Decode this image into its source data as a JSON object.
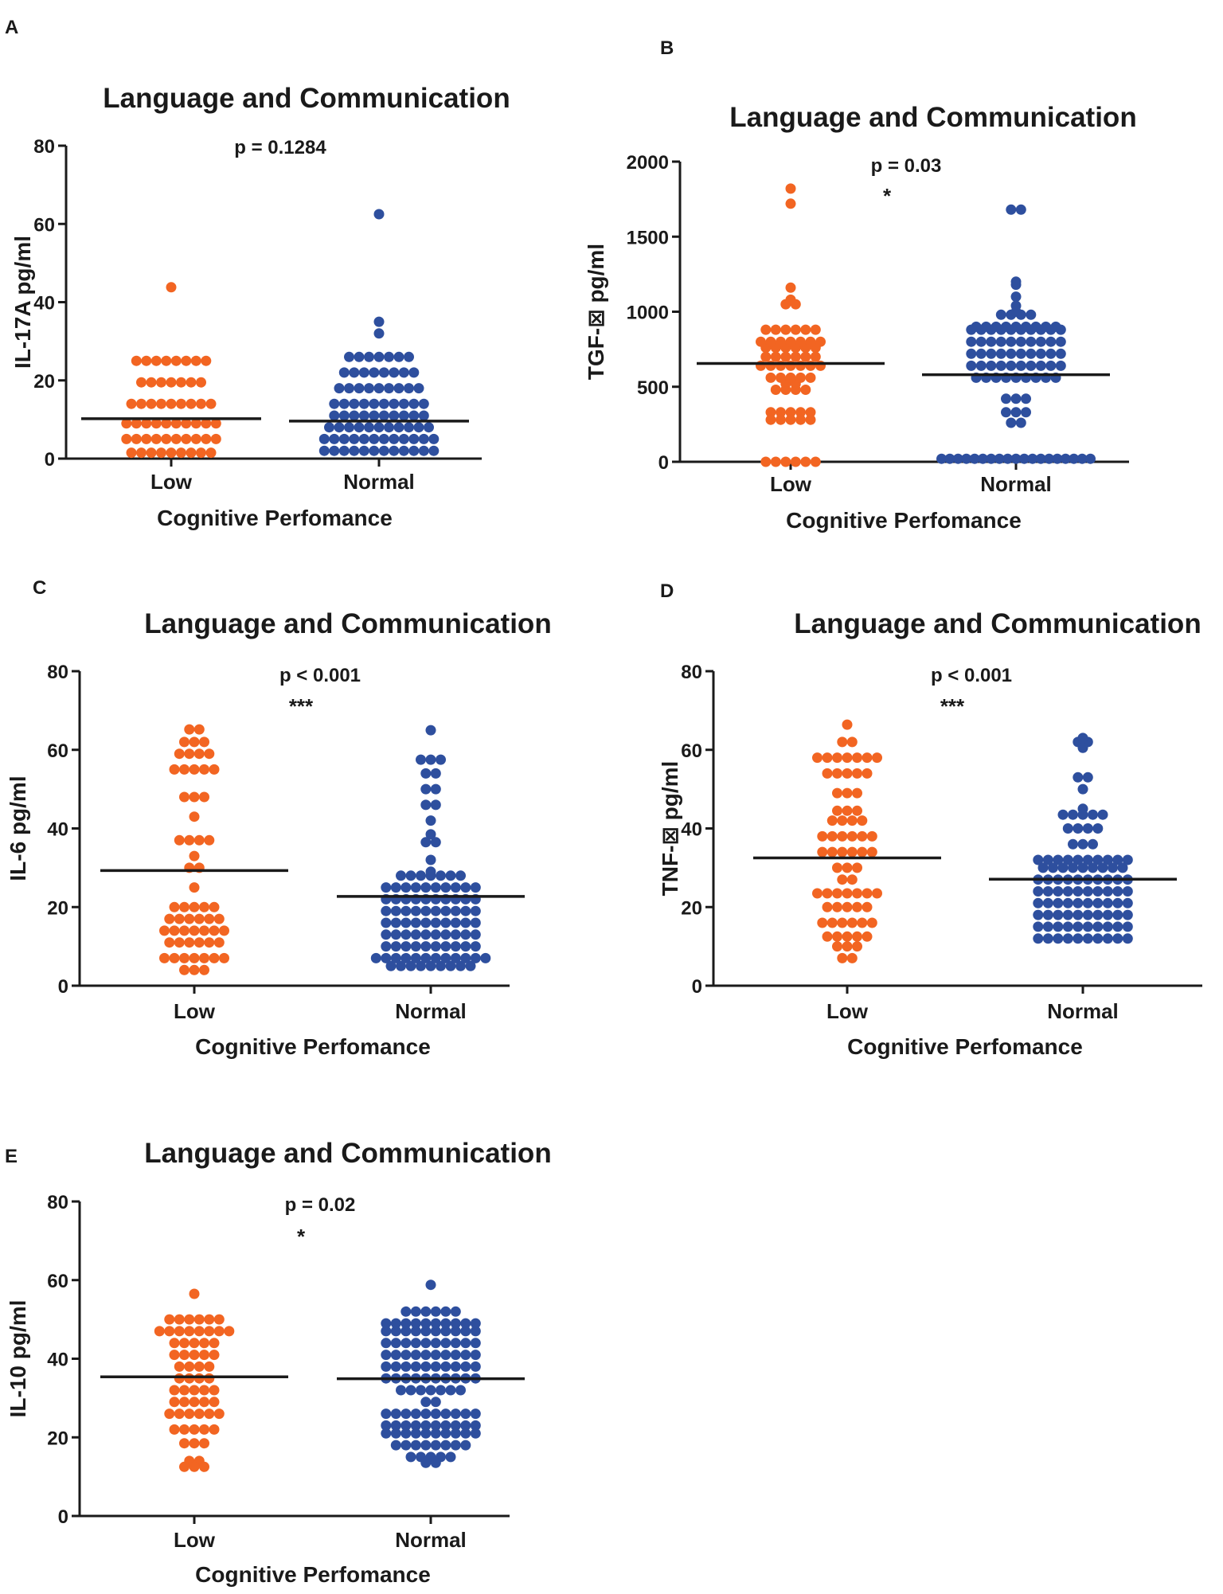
{
  "colors": {
    "low": "#f26522",
    "normal": "#2e4f9e",
    "axis": "#1a1a1a"
  },
  "chart_data": [
    {
      "panel": "A",
      "type": "scatter",
      "title": "Language and Communication",
      "ylabel": "IL-17A pg/ml",
      "xlabel": "Cognitive Perfomance",
      "ylim": [
        0,
        80
      ],
      "yticks": [
        0,
        20,
        40,
        60,
        80
      ],
      "categories": [
        "Low",
        "Normal"
      ],
      "p_value": "p  = 0.1284",
      "significance": "",
      "series": [
        {
          "name": "Low",
          "mean": 10.2,
          "values": [
            43.8,
            25,
            25,
            25,
            25,
            25,
            25,
            25,
            25,
            19.5,
            19.5,
            19.5,
            19.5,
            19.5,
            19.5,
            19.5,
            14,
            14,
            14,
            14,
            14,
            14,
            14,
            14,
            14,
            9,
            9,
            9,
            9,
            9,
            9,
            9,
            9,
            9,
            9,
            5,
            5,
            5,
            5,
            5,
            5,
            5,
            5,
            5,
            5,
            1.5,
            1.5,
            1.5,
            1.5,
            1.5,
            1.5,
            1.5,
            1.5,
            1.5
          ]
        },
        {
          "name": "Normal",
          "mean": 9.6,
          "values": [
            62.5,
            35,
            32,
            26,
            26,
            26,
            26,
            26,
            26,
            26,
            22,
            22,
            22,
            22,
            22,
            22,
            22,
            22,
            18,
            18,
            18,
            18,
            18,
            18,
            18,
            18,
            18,
            14,
            14,
            14,
            14,
            14,
            14,
            14,
            14,
            14,
            14,
            11,
            11,
            11,
            11,
            11,
            11,
            11,
            11,
            11,
            11,
            8,
            8,
            8,
            8,
            8,
            8,
            8,
            8,
            8,
            8,
            8,
            5,
            5,
            5,
            5,
            5,
            5,
            5,
            5,
            5,
            5,
            5,
            5,
            2,
            2,
            2,
            2,
            2,
            2,
            2,
            2,
            2,
            2,
            2,
            2
          ]
        }
      ]
    },
    {
      "panel": "B",
      "type": "scatter",
      "title": "Language and Communication",
      "ylabel": "TGF-⊠ pg/ml",
      "xlabel": "Cognitive Perfomance",
      "ylim": [
        0,
        2000
      ],
      "yticks": [
        0,
        500,
        1000,
        1500,
        2000
      ],
      "categories": [
        "Low",
        "Normal"
      ],
      "p_value": "p  = 0.03",
      "significance": "*",
      "series": [
        {
          "name": "Low",
          "mean": 655,
          "values": [
            1820,
            1720,
            1160,
            1080,
            1050,
            1050,
            880,
            880,
            880,
            880,
            880,
            880,
            800,
            800,
            800,
            800,
            800,
            800,
            800,
            760,
            760,
            760,
            760,
            760,
            760,
            700,
            700,
            700,
            700,
            700,
            700,
            640,
            640,
            640,
            640,
            640,
            640,
            640,
            560,
            560,
            560,
            560,
            560,
            520,
            520,
            480,
            480,
            480,
            480,
            330,
            330,
            330,
            330,
            330,
            280,
            280,
            280,
            280,
            280,
            0,
            0,
            0,
            0,
            0,
            0
          ]
        },
        {
          "name": "Normal",
          "mean": 580,
          "values": [
            1680,
            1680,
            1200,
            1180,
            1100,
            1040,
            1000,
            980,
            980,
            980,
            980,
            900,
            900,
            900,
            900,
            900,
            900,
            900,
            900,
            900,
            880,
            880,
            880,
            880,
            880,
            880,
            880,
            880,
            880,
            880,
            800,
            800,
            800,
            800,
            800,
            800,
            800,
            800,
            800,
            800,
            720,
            720,
            720,
            720,
            720,
            720,
            720,
            720,
            720,
            720,
            640,
            640,
            640,
            640,
            640,
            640,
            640,
            640,
            640,
            640,
            560,
            560,
            560,
            560,
            560,
            560,
            560,
            560,
            560,
            420,
            420,
            420,
            330,
            330,
            330,
            260,
            260,
            20,
            20,
            20,
            20,
            20,
            20,
            20,
            20,
            20,
            20,
            20,
            20,
            20,
            20,
            20,
            20,
            20,
            20,
            20
          ]
        }
      ]
    },
    {
      "panel": "C",
      "type": "scatter",
      "title": "Language and Communication",
      "ylabel": "IL-6 pg/ml",
      "xlabel": "Cognitive Perfomance",
      "ylim": [
        0,
        80
      ],
      "yticks": [
        0,
        20,
        40,
        60,
        80
      ],
      "categories": [
        "Low",
        "Normal"
      ],
      "p_value": "p < 0.001",
      "significance": "***",
      "series": [
        {
          "name": "Low",
          "mean": 29.3,
          "values": [
            65.2,
            65.2,
            62,
            62,
            62,
            59,
            59,
            59,
            59,
            55,
            55,
            55,
            55,
            55,
            48,
            48,
            48,
            43,
            37,
            37,
            37,
            37,
            33,
            30,
            30,
            25,
            20,
            20,
            20,
            20,
            20,
            17,
            17,
            17,
            17,
            17,
            17,
            14,
            14,
            14,
            14,
            14,
            14,
            14,
            11,
            11,
            11,
            11,
            11,
            11,
            7,
            7,
            7,
            7,
            7,
            7,
            7,
            4,
            4,
            4
          ]
        },
        {
          "name": "Normal",
          "mean": 22.7,
          "values": [
            65,
            57.5,
            57.5,
            57.5,
            54,
            54,
            50,
            50,
            46,
            46,
            42,
            38.5,
            36.5,
            36.5,
            32,
            29,
            28,
            28,
            28,
            28,
            28,
            28,
            28,
            25,
            25,
            25,
            25,
            25,
            25,
            25,
            25,
            25,
            25,
            22,
            22,
            22,
            22,
            22,
            22,
            22,
            22,
            22,
            22,
            19,
            19,
            19,
            19,
            19,
            19,
            19,
            19,
            19,
            19,
            16,
            16,
            16,
            16,
            16,
            16,
            16,
            16,
            16,
            16,
            13,
            13,
            13,
            13,
            13,
            13,
            13,
            13,
            13,
            13,
            10,
            10,
            10,
            10,
            10,
            10,
            10,
            10,
            10,
            10,
            7,
            7,
            7,
            7,
            7,
            7,
            7,
            7,
            7,
            7,
            7,
            7,
            5,
            5,
            5,
            5,
            5,
            5,
            5,
            5,
            5
          ]
        }
      ]
    },
    {
      "panel": "D",
      "type": "scatter",
      "title": "Language and Communication",
      "ylabel": "TNF-⊠ pg/ml",
      "xlabel": "Cognitive Perfomance",
      "ylim": [
        0,
        80
      ],
      "yticks": [
        0,
        20,
        40,
        60,
        80
      ],
      "categories": [
        "Low",
        "Normal"
      ],
      "p_value": "p < 0.001",
      "significance": "***",
      "series": [
        {
          "name": "Low",
          "mean": 32.5,
          "values": [
            66.4,
            62,
            62,
            58,
            58,
            58,
            58,
            58,
            58,
            58,
            54,
            54,
            54,
            54,
            54,
            49,
            49,
            49,
            44.5,
            44.5,
            44.5,
            42,
            42,
            42,
            42,
            38,
            38,
            38,
            38,
            38,
            38,
            34,
            34,
            34,
            34,
            34,
            34,
            30,
            30,
            30,
            27,
            27,
            23.5,
            23.5,
            23.5,
            23.5,
            23.5,
            23.5,
            23.5,
            20,
            20,
            20,
            20,
            20,
            16,
            16,
            16,
            16,
            16,
            16,
            12.5,
            12.5,
            12.5,
            12.5,
            12.5,
            10,
            10,
            10,
            7,
            7
          ]
        },
        {
          "name": "Normal",
          "mean": 27.1,
          "values": [
            63,
            62,
            62,
            61.5,
            61,
            60.5,
            53,
            53,
            50,
            45,
            43.5,
            43.5,
            43.5,
            43.5,
            43.5,
            40,
            40,
            40,
            40,
            36,
            36,
            36,
            32,
            32,
            32,
            32,
            32,
            32,
            32,
            32,
            32,
            32,
            30,
            30,
            30,
            30,
            30,
            30,
            30,
            30,
            30,
            27,
            27,
            27,
            27,
            27,
            27,
            27,
            27,
            27,
            27,
            24,
            24,
            24,
            24,
            24,
            24,
            24,
            24,
            24,
            24,
            21,
            21,
            21,
            21,
            21,
            21,
            21,
            21,
            21,
            21,
            18,
            18,
            18,
            18,
            18,
            18,
            18,
            18,
            18,
            18,
            15,
            15,
            15,
            15,
            15,
            15,
            15,
            15,
            15,
            15,
            12,
            12,
            12,
            12,
            12,
            12,
            12,
            12,
            12,
            12
          ]
        }
      ]
    },
    {
      "panel": "E",
      "type": "scatter",
      "title": "Language and Communication",
      "ylabel": "IL-10 pg/ml",
      "xlabel": "Cognitive Perfomance",
      "ylim": [
        0,
        80
      ],
      "yticks": [
        0,
        20,
        40,
        60,
        80
      ],
      "categories": [
        "Low",
        "Normal"
      ],
      "p_value": "p = 0.02",
      "significance": "*",
      "series": [
        {
          "name": "Low",
          "mean": 35.4,
          "values": [
            56.5,
            50,
            50,
            50,
            50,
            50,
            50,
            47,
            47,
            47,
            47,
            47,
            47,
            47,
            47,
            44,
            44,
            44,
            44,
            44,
            41,
            41,
            41,
            41,
            41,
            38,
            38,
            38,
            38,
            35,
            35,
            35,
            35,
            32,
            32,
            32,
            32,
            32,
            29,
            29,
            29,
            29,
            29,
            26,
            26,
            26,
            26,
            26,
            26,
            22,
            22,
            22,
            22,
            22,
            18.5,
            18.5,
            18.5,
            14,
            14,
            12.5,
            12.5,
            12.5
          ]
        },
        {
          "name": "Normal",
          "mean": 34.9,
          "values": [
            58.8,
            52,
            52,
            52,
            52,
            52,
            52,
            49,
            49,
            49,
            49,
            49,
            49,
            49,
            49,
            49,
            49,
            47,
            47,
            47,
            47,
            47,
            47,
            47,
            47,
            47,
            47,
            44,
            44,
            44,
            44,
            44,
            44,
            44,
            44,
            44,
            44,
            41,
            41,
            41,
            41,
            41,
            41,
            41,
            41,
            41,
            41,
            38,
            38,
            38,
            38,
            38,
            38,
            38,
            38,
            38,
            38,
            35,
            35,
            35,
            35,
            35,
            35,
            35,
            35,
            35,
            35,
            32,
            32,
            32,
            32,
            32,
            32,
            32,
            29,
            29,
            26,
            26,
            26,
            26,
            26,
            26,
            26,
            26,
            26,
            26,
            23,
            23,
            23,
            23,
            23,
            23,
            23,
            23,
            23,
            23,
            21,
            21,
            21,
            21,
            21,
            21,
            21,
            21,
            21,
            21,
            18,
            18,
            18,
            18,
            18,
            18,
            18,
            18,
            15,
            15,
            15,
            15,
            15,
            13.5,
            13.5
          ]
        }
      ]
    }
  ]
}
